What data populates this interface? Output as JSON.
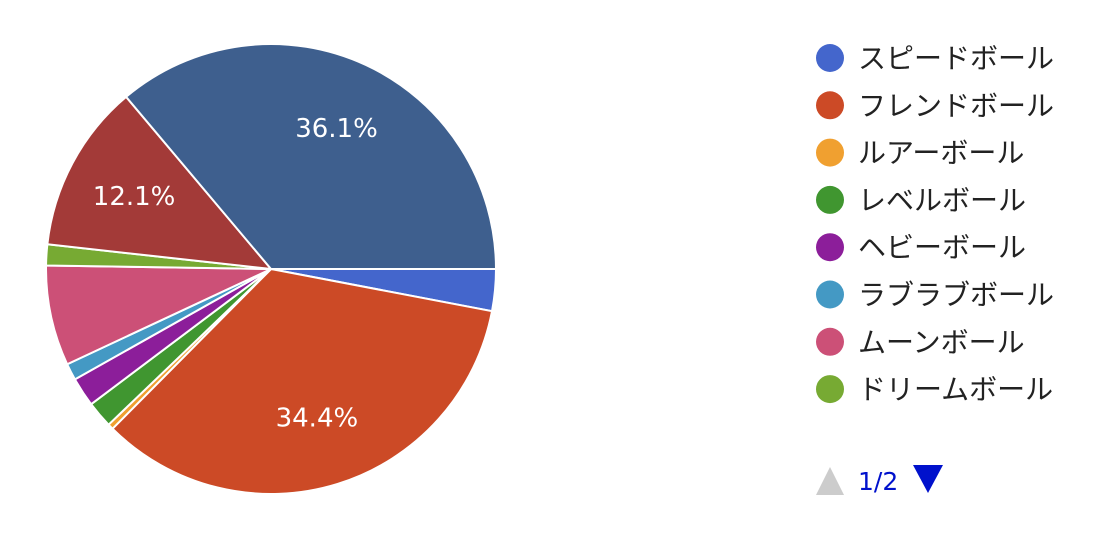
{
  "chart_data": {
    "type": "pie",
    "start_angle_deg": 0,
    "direction": "clockwise",
    "legend_position": "right",
    "slices": [
      {
        "label": "スピードボール",
        "value": 3.0,
        "color": "#4466cc",
        "data_label": ""
      },
      {
        "label": "フレンドボール",
        "value": 34.4,
        "color": "#cc4a26",
        "data_label": "34.4%"
      },
      {
        "label": "ルアーボール",
        "value": 0.4,
        "color": "#f0a030",
        "data_label": ""
      },
      {
        "label": "レベルボール",
        "value": 1.9,
        "color": "#409630",
        "data_label": ""
      },
      {
        "label": "ヘビーボール",
        "value": 2.1,
        "color": "#8c1e9a",
        "data_label": ""
      },
      {
        "label": "ラブラブボール",
        "value": 1.2,
        "color": "#4499c4",
        "data_label": ""
      },
      {
        "label": "ムーンボール",
        "value": 7.2,
        "color": "#cc5077",
        "data_label": ""
      },
      {
        "label": "ドリームボール",
        "value": 1.5,
        "color": "#77aa33",
        "data_label": ""
      },
      {
        "label": "",
        "value": 12.1,
        "color": "#a33a38",
        "data_label": "12.1%"
      },
      {
        "label": "",
        "value": 36.1,
        "color": "#3e5f8e",
        "data_label": "36.1%"
      }
    ]
  },
  "legend_pager": {
    "page_text": "1/2",
    "prev_enabled": false,
    "next_enabled": true,
    "disabled_color": "#cccccc",
    "enabled_color": "#0011cc"
  }
}
